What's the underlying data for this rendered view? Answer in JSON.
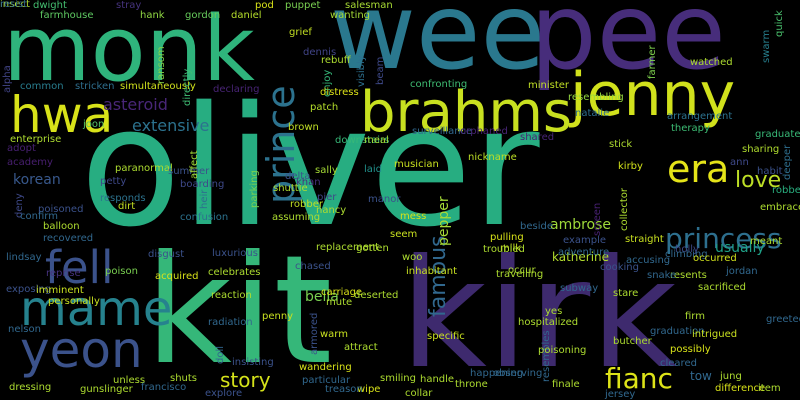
{
  "wordcloud": {
    "background": "#000000",
    "words": [
      {
        "text": "oliver",
        "color": "#27ad81",
        "vertical": false
      },
      {
        "text": "kit",
        "color": "#35b779",
        "vertical": false
      },
      {
        "text": "kirk",
        "color": "#3e2a6e",
        "vertical": false
      },
      {
        "text": "wee",
        "color": "#2a788e",
        "vertical": false
      },
      {
        "text": "pee",
        "color": "#472d7b",
        "vertical": false
      },
      {
        "text": "monk",
        "color": "#2fb47c",
        "vertical": false
      },
      {
        "text": "jenny",
        "color": "#d1e11c",
        "vertical": false
      },
      {
        "text": "brahms",
        "color": "#c8e020",
        "vertical": false
      },
      {
        "text": "hwa",
        "color": "#d8e219",
        "vertical": false
      },
      {
        "text": "mame",
        "color": "#26828e",
        "vertical": false
      },
      {
        "text": "yeon",
        "color": "#3b528b",
        "vertical": false
      },
      {
        "text": "fell",
        "color": "#3b528b",
        "vertical": false
      },
      {
        "text": "prince",
        "color": "#2c728e",
        "vertical": true
      },
      {
        "text": "era",
        "color": "#e5e419",
        "vertical": false
      },
      {
        "text": "princess",
        "color": "#2d6f8e",
        "vertical": false
      },
      {
        "text": "fianc",
        "color": "#dde318",
        "vertical": false
      },
      {
        "text": "famous",
        "color": "#31688e",
        "vertical": true
      },
      {
        "text": "love",
        "color": "#bddf26",
        "vertical": false
      },
      {
        "text": "story",
        "color": "#d5e21a",
        "vertical": false
      },
      {
        "text": "extensive",
        "color": "#2c728e",
        "vertical": false
      },
      {
        "text": "asteroid",
        "color": "#482677",
        "vertical": false
      },
      {
        "text": "korean",
        "color": "#38588c",
        "vertical": false
      },
      {
        "text": "usually",
        "color": "#1fa188",
        "vertical": false
      },
      {
        "text": "ambrose",
        "color": "#9fda3a",
        "vertical": false
      },
      {
        "text": "bella",
        "color": "#7ad151",
        "vertical": false
      },
      {
        "text": "pepper",
        "color": "#a5db36",
        "vertical": true
      },
      {
        "text": "katherine",
        "color": "#b2dd2d",
        "vertical": false
      },
      {
        "text": "tow",
        "color": "#31688e",
        "vertical": false
      },
      {
        "text": "dwight",
        "color": "#44bf70",
        "vertical": false
      },
      {
        "text": "stray",
        "color": "#46337e",
        "vertical": false
      },
      {
        "text": "pod",
        "color": "#d8e219",
        "vertical": false
      },
      {
        "text": "puppet",
        "color": "#7ad151",
        "vertical": false
      },
      {
        "text": "salesman",
        "color": "#a8db34",
        "vertical": false
      },
      {
        "text": "quick",
        "color": "#4ac16d",
        "vertical": true
      },
      {
        "text": "farmhouse",
        "color": "#5ec962",
        "vertical": false
      },
      {
        "text": "hank",
        "color": "#90d743",
        "vertical": false
      },
      {
        "text": "gordon",
        "color": "#67cc5c",
        "vertical": false
      },
      {
        "text": "daniel",
        "color": "#b5de2b",
        "vertical": false
      },
      {
        "text": "wanting",
        "color": "#a5db36",
        "vertical": false
      },
      {
        "text": "swarm",
        "color": "#277f8e",
        "vertical": true
      },
      {
        "text": "farmer",
        "color": "#7fd34e",
        "vertical": true
      },
      {
        "text": "grief",
        "color": "#c2df23",
        "vertical": false
      },
      {
        "text": "dennis",
        "color": "#414487",
        "vertical": false
      },
      {
        "text": "rebuff",
        "color": "#addc30",
        "vertical": false
      },
      {
        "text": "beam",
        "color": "#3e4989",
        "vertical": true
      },
      {
        "text": "visibly",
        "color": "#2d708e",
        "vertical": true
      },
      {
        "text": "watched",
        "color": "#addc30",
        "vertical": false
      },
      {
        "text": "alpha",
        "color": "#414487",
        "vertical": true
      },
      {
        "text": "common",
        "color": "#287d8e",
        "vertical": false
      },
      {
        "text": "stricken",
        "color": "#2e6e8e",
        "vertical": false
      },
      {
        "text": "simultaneously",
        "color": "#d0e11c",
        "vertical": false
      },
      {
        "text": "declaring",
        "color": "#482475",
        "vertical": false
      },
      {
        "text": "ransom",
        "color": "#86d549",
        "vertical": true
      },
      {
        "text": "directly",
        "color": "#3fbc73",
        "vertical": true
      },
      {
        "text": "enjoy",
        "color": "#35b779",
        "vertical": true
      },
      {
        "text": "distress",
        "color": "#dde318",
        "vertical": false
      },
      {
        "text": "minister",
        "color": "#c0df25",
        "vertical": false
      },
      {
        "text": "confronting",
        "color": "#3fbc73",
        "vertical": false
      },
      {
        "text": "resembling",
        "color": "#95d840",
        "vertical": false
      },
      {
        "text": "patch",
        "color": "#b5de2b",
        "vertical": false
      },
      {
        "text": "natalie",
        "color": "#2e6e8e",
        "vertical": false
      },
      {
        "text": "arrangement",
        "color": "#2c728e",
        "vertical": false
      },
      {
        "text": "therapy",
        "color": "#3dbc74",
        "vertical": false
      },
      {
        "text": "graduate",
        "color": "#38b977",
        "vertical": false
      },
      {
        "text": "sharing",
        "color": "#b0dd2f",
        "vertical": false
      },
      {
        "text": "deeper",
        "color": "#2e6e8e",
        "vertical": true
      },
      {
        "text": "habit",
        "color": "#3b528b",
        "vertical": false
      },
      {
        "text": "adopt",
        "color": "#482173",
        "vertical": false
      },
      {
        "text": "enterprise",
        "color": "#addc30",
        "vertical": false
      },
      {
        "text": "joon",
        "color": "#54c568",
        "vertical": false
      },
      {
        "text": "brown",
        "color": "#c0df25",
        "vertical": false
      },
      {
        "text": "surveillance",
        "color": "#31688e",
        "vertical": false
      },
      {
        "text": "orphaned",
        "color": "#482576",
        "vertical": false
      },
      {
        "text": "shared",
        "color": "#482475",
        "vertical": false
      },
      {
        "text": "downstairs",
        "color": "#37b878",
        "vertical": false
      },
      {
        "text": "meal",
        "color": "#a8db34",
        "vertical": false
      },
      {
        "text": "stick",
        "color": "#addc30",
        "vertical": false
      },
      {
        "text": "academy",
        "color": "#481f70",
        "vertical": false
      },
      {
        "text": "paranormal",
        "color": "#addc30",
        "vertical": false
      },
      {
        "text": "summer",
        "color": "#3b528b",
        "vertical": false
      },
      {
        "text": "affect",
        "color": "#a2da37",
        "vertical": true
      },
      {
        "text": "sally",
        "color": "#a5db36",
        "vertical": false
      },
      {
        "text": "laid",
        "color": "#21918c",
        "vertical": false
      },
      {
        "text": "nickname",
        "color": "#bddf26",
        "vertical": false
      },
      {
        "text": "kirby",
        "color": "#d2e21b",
        "vertical": false
      },
      {
        "text": "deny",
        "color": "#3e4989",
        "vertical": true
      },
      {
        "text": "petty",
        "color": "#3e4989",
        "vertical": false
      },
      {
        "text": "boarding",
        "color": "#3e4989",
        "vertical": false
      },
      {
        "text": "heir",
        "color": "#2d708e",
        "vertical": true
      },
      {
        "text": "parking",
        "color": "#7ad151",
        "vertical": true
      },
      {
        "text": "shuttle",
        "color": "#addc30",
        "vertical": false
      },
      {
        "text": "khan",
        "color": "#46327e",
        "vertical": false
      },
      {
        "text": "musician",
        "color": "#c8e020",
        "vertical": false
      },
      {
        "text": "ann",
        "color": "#3e4989",
        "vertical": false
      },
      {
        "text": "robbed",
        "color": "#29af7f",
        "vertical": false
      },
      {
        "text": "responds",
        "color": "#2c728e",
        "vertical": false
      },
      {
        "text": "poisoned",
        "color": "#3b528b",
        "vertical": false
      },
      {
        "text": "dirt",
        "color": "#c2df23",
        "vertical": false
      },
      {
        "text": "pier",
        "color": "#404688",
        "vertical": false
      },
      {
        "text": "robber",
        "color": "#c0df25",
        "vertical": false
      },
      {
        "text": "delta",
        "color": "#3b528b",
        "vertical": false
      },
      {
        "text": "manor",
        "color": "#3b528b",
        "vertical": false
      },
      {
        "text": "collector",
        "color": "#addc30",
        "vertical": true
      },
      {
        "text": "screen",
        "color": "#482173",
        "vertical": true
      },
      {
        "text": "embrace",
        "color": "#addc30",
        "vertical": false
      },
      {
        "text": "confirm",
        "color": "#31688e",
        "vertical": false
      },
      {
        "text": "confusion",
        "color": "#2c728e",
        "vertical": false
      },
      {
        "text": "assuming",
        "color": "#addc30",
        "vertical": false
      },
      {
        "text": "nancy",
        "color": "#addc30",
        "vertical": false
      },
      {
        "text": "mess",
        "color": "#d5e21a",
        "vertical": false
      },
      {
        "text": "example",
        "color": "#3b528b",
        "vertical": false
      },
      {
        "text": "holly",
        "color": "#3e4989",
        "vertical": false
      },
      {
        "text": "balloon",
        "color": "#addc30",
        "vertical": false
      },
      {
        "text": "recovered",
        "color": "#31688e",
        "vertical": false
      },
      {
        "text": "pulling",
        "color": "#d8e219",
        "vertical": false
      },
      {
        "text": "milk",
        "color": "#c8e020",
        "vertical": false
      },
      {
        "text": "beside",
        "color": "#31688e",
        "vertical": false
      },
      {
        "text": "straight",
        "color": "#c8e020",
        "vertical": false
      },
      {
        "text": "meant",
        "color": "#addc30",
        "vertical": false
      },
      {
        "text": "luxurious",
        "color": "#3b528b",
        "vertical": false
      },
      {
        "text": "replacement",
        "color": "#addc30",
        "vertical": false
      },
      {
        "text": "seem",
        "color": "#c8e020",
        "vertical": false
      },
      {
        "text": "troubled",
        "color": "#addc30",
        "vertical": false
      },
      {
        "text": "adventure",
        "color": "#31688e",
        "vertical": false
      },
      {
        "text": "climbing",
        "color": "#31688e",
        "vertical": false
      },
      {
        "text": "occurred",
        "color": "#d0e11c",
        "vertical": false
      },
      {
        "text": "poison",
        "color": "#7ad151",
        "vertical": false
      },
      {
        "text": "disgust",
        "color": "#3b528b",
        "vertical": false
      },
      {
        "text": "gotten",
        "color": "#addc30",
        "vertical": false
      },
      {
        "text": "occur",
        "color": "#addc30",
        "vertical": false
      },
      {
        "text": "accusing",
        "color": "#31688e",
        "vertical": false
      },
      {
        "text": "lindsay",
        "color": "#31688e",
        "vertical": false
      },
      {
        "text": "reprise",
        "color": "#46327e",
        "vertical": false
      },
      {
        "text": "acquired",
        "color": "#d8e219",
        "vertical": false
      },
      {
        "text": "chased",
        "color": "#3b528b",
        "vertical": false
      },
      {
        "text": "woo",
        "color": "#addc30",
        "vertical": false
      },
      {
        "text": "cooking",
        "color": "#3b528b",
        "vertical": false
      },
      {
        "text": "resents",
        "color": "#addc30",
        "vertical": false
      },
      {
        "text": "jordan",
        "color": "#31688e",
        "vertical": false
      },
      {
        "text": "celebrates",
        "color": "#addc30",
        "vertical": false
      },
      {
        "text": "inhabitant",
        "color": "#c8e020",
        "vertical": false
      },
      {
        "text": "travelling",
        "color": "#addc30",
        "vertical": false
      },
      {
        "text": "snake",
        "color": "#31688e",
        "vertical": false
      },
      {
        "text": "sacrificed",
        "color": "#addc30",
        "vertical": false
      },
      {
        "text": "exposing",
        "color": "#3b528b",
        "vertical": false
      },
      {
        "text": "imminent",
        "color": "#c8e020",
        "vertical": false
      },
      {
        "text": "reaction",
        "color": "#addc30",
        "vertical": false
      },
      {
        "text": "carriage",
        "color": "#d8e219",
        "vertical": false
      },
      {
        "text": "subway",
        "color": "#31688e",
        "vertical": false
      },
      {
        "text": "stare",
        "color": "#addc30",
        "vertical": false
      },
      {
        "text": "personally",
        "color": "#c8e020",
        "vertical": false
      },
      {
        "text": "penny",
        "color": "#c8e020",
        "vertical": false
      },
      {
        "text": "mute",
        "color": "#addc30",
        "vertical": false
      },
      {
        "text": "deserted",
        "color": "#addc30",
        "vertical": false
      },
      {
        "text": "yes",
        "color": "#addc30",
        "vertical": false
      },
      {
        "text": "firm",
        "color": "#addc30",
        "vertical": false
      },
      {
        "text": "nelson",
        "color": "#31688e",
        "vertical": false
      },
      {
        "text": "radiation",
        "color": "#31688e",
        "vertical": false
      },
      {
        "text": "armored",
        "color": "#3b528b",
        "vertical": true
      },
      {
        "text": "hospitalized",
        "color": "#addc30",
        "vertical": false
      },
      {
        "text": "graduation",
        "color": "#31688e",
        "vertical": false
      },
      {
        "text": "intrigued",
        "color": "#c8e020",
        "vertical": false
      },
      {
        "text": "greeted",
        "color": "#31688e",
        "vertical": false
      },
      {
        "text": "warm",
        "color": "#c8e020",
        "vertical": false
      },
      {
        "text": "resembles",
        "color": "#31688e",
        "vertical": true
      },
      {
        "text": "butcher",
        "color": "#addc30",
        "vertical": false
      },
      {
        "text": "specific",
        "color": "#c8e020",
        "vertical": false
      },
      {
        "text": "possibly",
        "color": "#d8e219",
        "vertical": false
      },
      {
        "text": "doll",
        "color": "#31688e",
        "vertical": true
      },
      {
        "text": "insisting",
        "color": "#3b528b",
        "vertical": false
      },
      {
        "text": "attract",
        "color": "#addc30",
        "vertical": false
      },
      {
        "text": "poisoning",
        "color": "#addc30",
        "vertical": false
      },
      {
        "text": "cleared",
        "color": "#31688e",
        "vertical": false
      },
      {
        "text": "happening",
        "color": "#31688e",
        "vertical": false
      },
      {
        "text": "observing",
        "color": "#31688e",
        "vertical": false
      },
      {
        "text": "unless",
        "color": "#addc30",
        "vertical": false
      },
      {
        "text": "shuts",
        "color": "#addc30",
        "vertical": false
      },
      {
        "text": "smiling",
        "color": "#addc30",
        "vertical": false
      },
      {
        "text": "handle",
        "color": "#addc30",
        "vertical": false
      },
      {
        "text": "throne",
        "color": "#addc30",
        "vertical": false
      },
      {
        "text": "jung",
        "color": "#addc30",
        "vertical": false
      },
      {
        "text": "dressing",
        "color": "#addc30",
        "vertical": false
      },
      {
        "text": "gunslinger",
        "color": "#addc30",
        "vertical": false
      },
      {
        "text": "francisco",
        "color": "#31688e",
        "vertical": false
      },
      {
        "text": "particular",
        "color": "#31688e",
        "vertical": false
      },
      {
        "text": "wipe",
        "color": "#d8e219",
        "vertical": false
      },
      {
        "text": "finale",
        "color": "#addc30",
        "vertical": false
      },
      {
        "text": "difference",
        "color": "#d8e219",
        "vertical": false
      },
      {
        "text": "item",
        "color": "#addc30",
        "vertical": false
      },
      {
        "text": "explore",
        "color": "#3b528b",
        "vertical": false
      },
      {
        "text": "wandering",
        "color": "#d8e219",
        "vertical": false
      },
      {
        "text": "treason",
        "color": "#31688e",
        "vertical": false
      },
      {
        "text": "collar",
        "color": "#addc30",
        "vertical": false
      },
      {
        "text": "jersey",
        "color": "#31688e",
        "vertical": false
      },
      {
        "text": "insect",
        "color": "#addc30",
        "vertical": false
      },
      {
        "text": "resist",
        "color": "#31688e",
        "vertical": false
      }
    ]
  }
}
